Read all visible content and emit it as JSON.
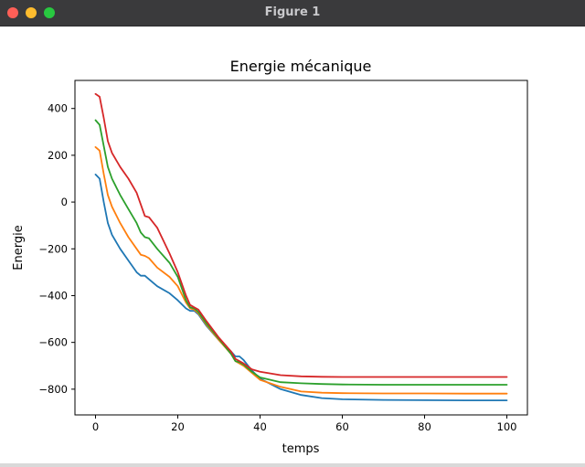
{
  "window": {
    "title": "Figure 1"
  },
  "chart_data": {
    "type": "line",
    "title": "Energie mécanique",
    "xlabel": "temps",
    "ylabel": "Energie",
    "xlim": [
      -5,
      105
    ],
    "ylim": [
      -910,
      520
    ],
    "xticks": [
      0,
      20,
      40,
      60,
      80,
      100
    ],
    "yticks": [
      -800,
      -600,
      -400,
      -200,
      0,
      200,
      400
    ],
    "xtick_labels": [
      "0",
      "20",
      "40",
      "60",
      "80",
      "100"
    ],
    "ytick_labels": [
      "−800",
      "−600",
      "−400",
      "−200",
      "0",
      "200",
      "400"
    ],
    "grid": false,
    "x": [
      0,
      1,
      2,
      3,
      4,
      6,
      8,
      10,
      11,
      12,
      13,
      15,
      18,
      20,
      22,
      23,
      24,
      25,
      27,
      30,
      33,
      34,
      35,
      36,
      38,
      40,
      45,
      50,
      55,
      60,
      70,
      80,
      90,
      100
    ],
    "series": [
      {
        "color": "#1f77b4",
        "values": [
          118,
          100,
          0,
          -90,
          -140,
          -200,
          -250,
          -300,
          -315,
          -315,
          -330,
          -360,
          -390,
          -420,
          -455,
          -465,
          -465,
          -480,
          -530,
          -590,
          -640,
          -660,
          -660,
          -675,
          -720,
          -755,
          -800,
          -825,
          -838,
          -843,
          -846,
          -847,
          -848,
          -848
        ]
      },
      {
        "color": "#ff7f0e",
        "values": [
          235,
          220,
          120,
          30,
          -20,
          -90,
          -150,
          -200,
          -225,
          -230,
          -240,
          -280,
          -320,
          -360,
          -430,
          -455,
          -460,
          -475,
          -525,
          -590,
          -650,
          -680,
          -690,
          -700,
          -730,
          -760,
          -790,
          -810,
          -815,
          -817,
          -818,
          -818,
          -819,
          -819
        ]
      },
      {
        "color": "#2ca02c",
        "values": [
          350,
          330,
          240,
          150,
          100,
          30,
          -30,
          -90,
          -130,
          -150,
          -155,
          -200,
          -260,
          -320,
          -420,
          -450,
          -455,
          -470,
          -520,
          -585,
          -650,
          -680,
          -685,
          -695,
          -725,
          -750,
          -770,
          -775,
          -778,
          -780,
          -781,
          -781,
          -781,
          -781
        ]
      },
      {
        "color": "#d62728",
        "values": [
          462,
          450,
          360,
          260,
          210,
          150,
          100,
          40,
          -10,
          -60,
          -65,
          -110,
          -220,
          -300,
          -400,
          -440,
          -450,
          -460,
          -510,
          -580,
          -640,
          -670,
          -680,
          -690,
          -715,
          -725,
          -740,
          -745,
          -747,
          -748,
          -748,
          -748,
          -748,
          -748
        ]
      }
    ]
  }
}
